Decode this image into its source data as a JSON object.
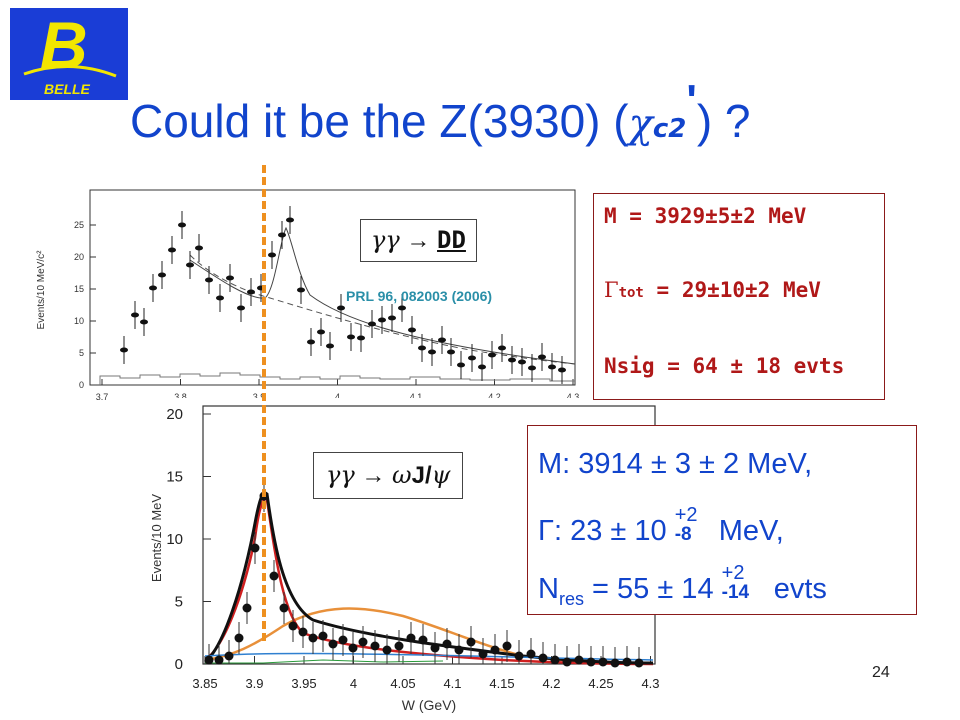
{
  "logo": {
    "letter": "B",
    "text": "BELLE"
  },
  "title": {
    "prefix": "Could it be the Z(3930) (",
    "chi": "χ",
    "sub": "c2",
    "prime": "'",
    "suffix": ") ?"
  },
  "top_plot": {
    "ylabel": "Events/10 MeV/c²",
    "xticks": [
      "3.7",
      "3.8",
      "3.9",
      "4",
      "4.1",
      "4.2",
      "4.3"
    ],
    "yticks": [
      "0",
      "5",
      "10",
      "15",
      "20",
      "25"
    ],
    "process": {
      "greek": "γγ",
      "arrow": "→",
      "final": "DD"
    },
    "reference": "PRL 96, 082003 (2006)"
  },
  "bottom_plot": {
    "ylabel": "Events/10 MeV",
    "xlabel": "W (GeV)",
    "xticks": [
      "3.85",
      "3.9",
      "3.95",
      "4",
      "4.05",
      "4.1",
      "4.15",
      "4.2",
      "4.25",
      "4.3"
    ],
    "yticks": [
      "0",
      "5",
      "10",
      "15",
      "20"
    ],
    "process": {
      "greek": "γγ",
      "arrow": "→",
      "final_greek": "ω",
      "final": "J/",
      "final_psi": "ψ"
    }
  },
  "box1": {
    "mass": "M = 3929±5±2 MeV",
    "gamma_symbol": "Γ",
    "gamma_sub": "tot",
    "gamma_value": "= 29±10±2 MeV",
    "nsig": "Nsig = 64 ± 18 evts"
  },
  "box2": {
    "mass": "M: 3914 ± 3 ± 2 MeV,",
    "gamma_prefix": "Γ: 23 ± 10",
    "gamma_err_up": "+2",
    "gamma_err_down": "-8",
    "gamma_unit": "MeV,",
    "n_prefix": "N",
    "n_sub": "res",
    "n_value": "= 55 ± 14",
    "n_err_up": "+2",
    "n_err_down": "-14",
    "n_unit": "evts"
  },
  "page_number": "24"
}
